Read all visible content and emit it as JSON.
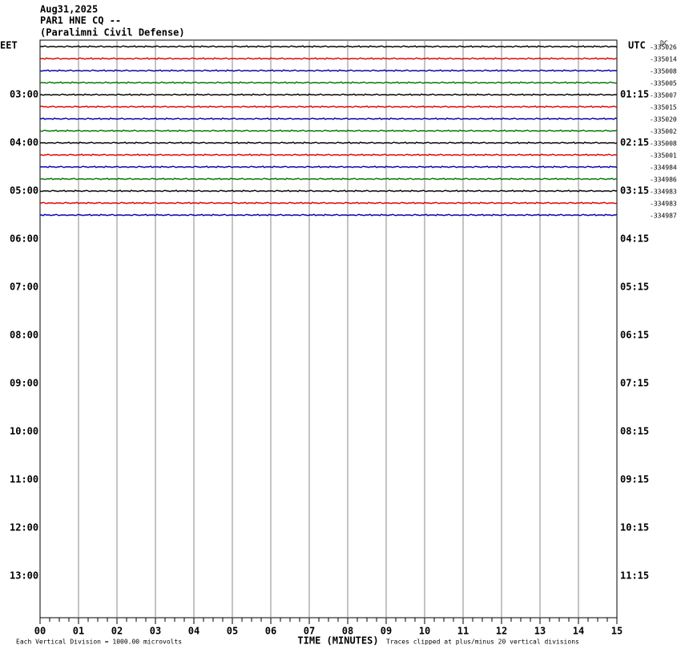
{
  "header": {
    "lines": [
      "Aug31,2025",
      "PAR1 HNE CQ --",
      "(Paralimni Civil Defense)"
    ]
  },
  "left_labels": [
    "EET",
    "03:00",
    "04:00",
    "05:00",
    "06:00",
    "07:00",
    "08:00",
    "09:00",
    "10:00",
    "11:00",
    "12:00",
    "13:00"
  ],
  "right_labels": [
    "UTC",
    "01:15",
    "02:15",
    "03:15",
    "04:15",
    "05:15",
    "06:15",
    "07:15",
    "08:15",
    "09:15",
    "10:15",
    "11:15"
  ],
  "dc_label": "DC",
  "trace_offsets": [
    "-335026",
    "-335014",
    "-335008",
    "-335005",
    "-335007",
    "-335015",
    "-335020",
    "-335002",
    "-335008",
    "-335001",
    "-334984",
    "-334986",
    "-334983",
    "-334983",
    "-334987"
  ],
  "x_ticks": [
    "00",
    "01",
    "02",
    "03",
    "04",
    "05",
    "06",
    "07",
    "08",
    "09",
    "10",
    "11",
    "12",
    "13",
    "14",
    "15"
  ],
  "footer": {
    "x_title": "TIME (MINUTES)",
    "scale_note": "Each Vertical Division = 1000.00 microvolts",
    "clip_note": "Traces clipped at plus/minus 20 vertical divisions"
  }
}
